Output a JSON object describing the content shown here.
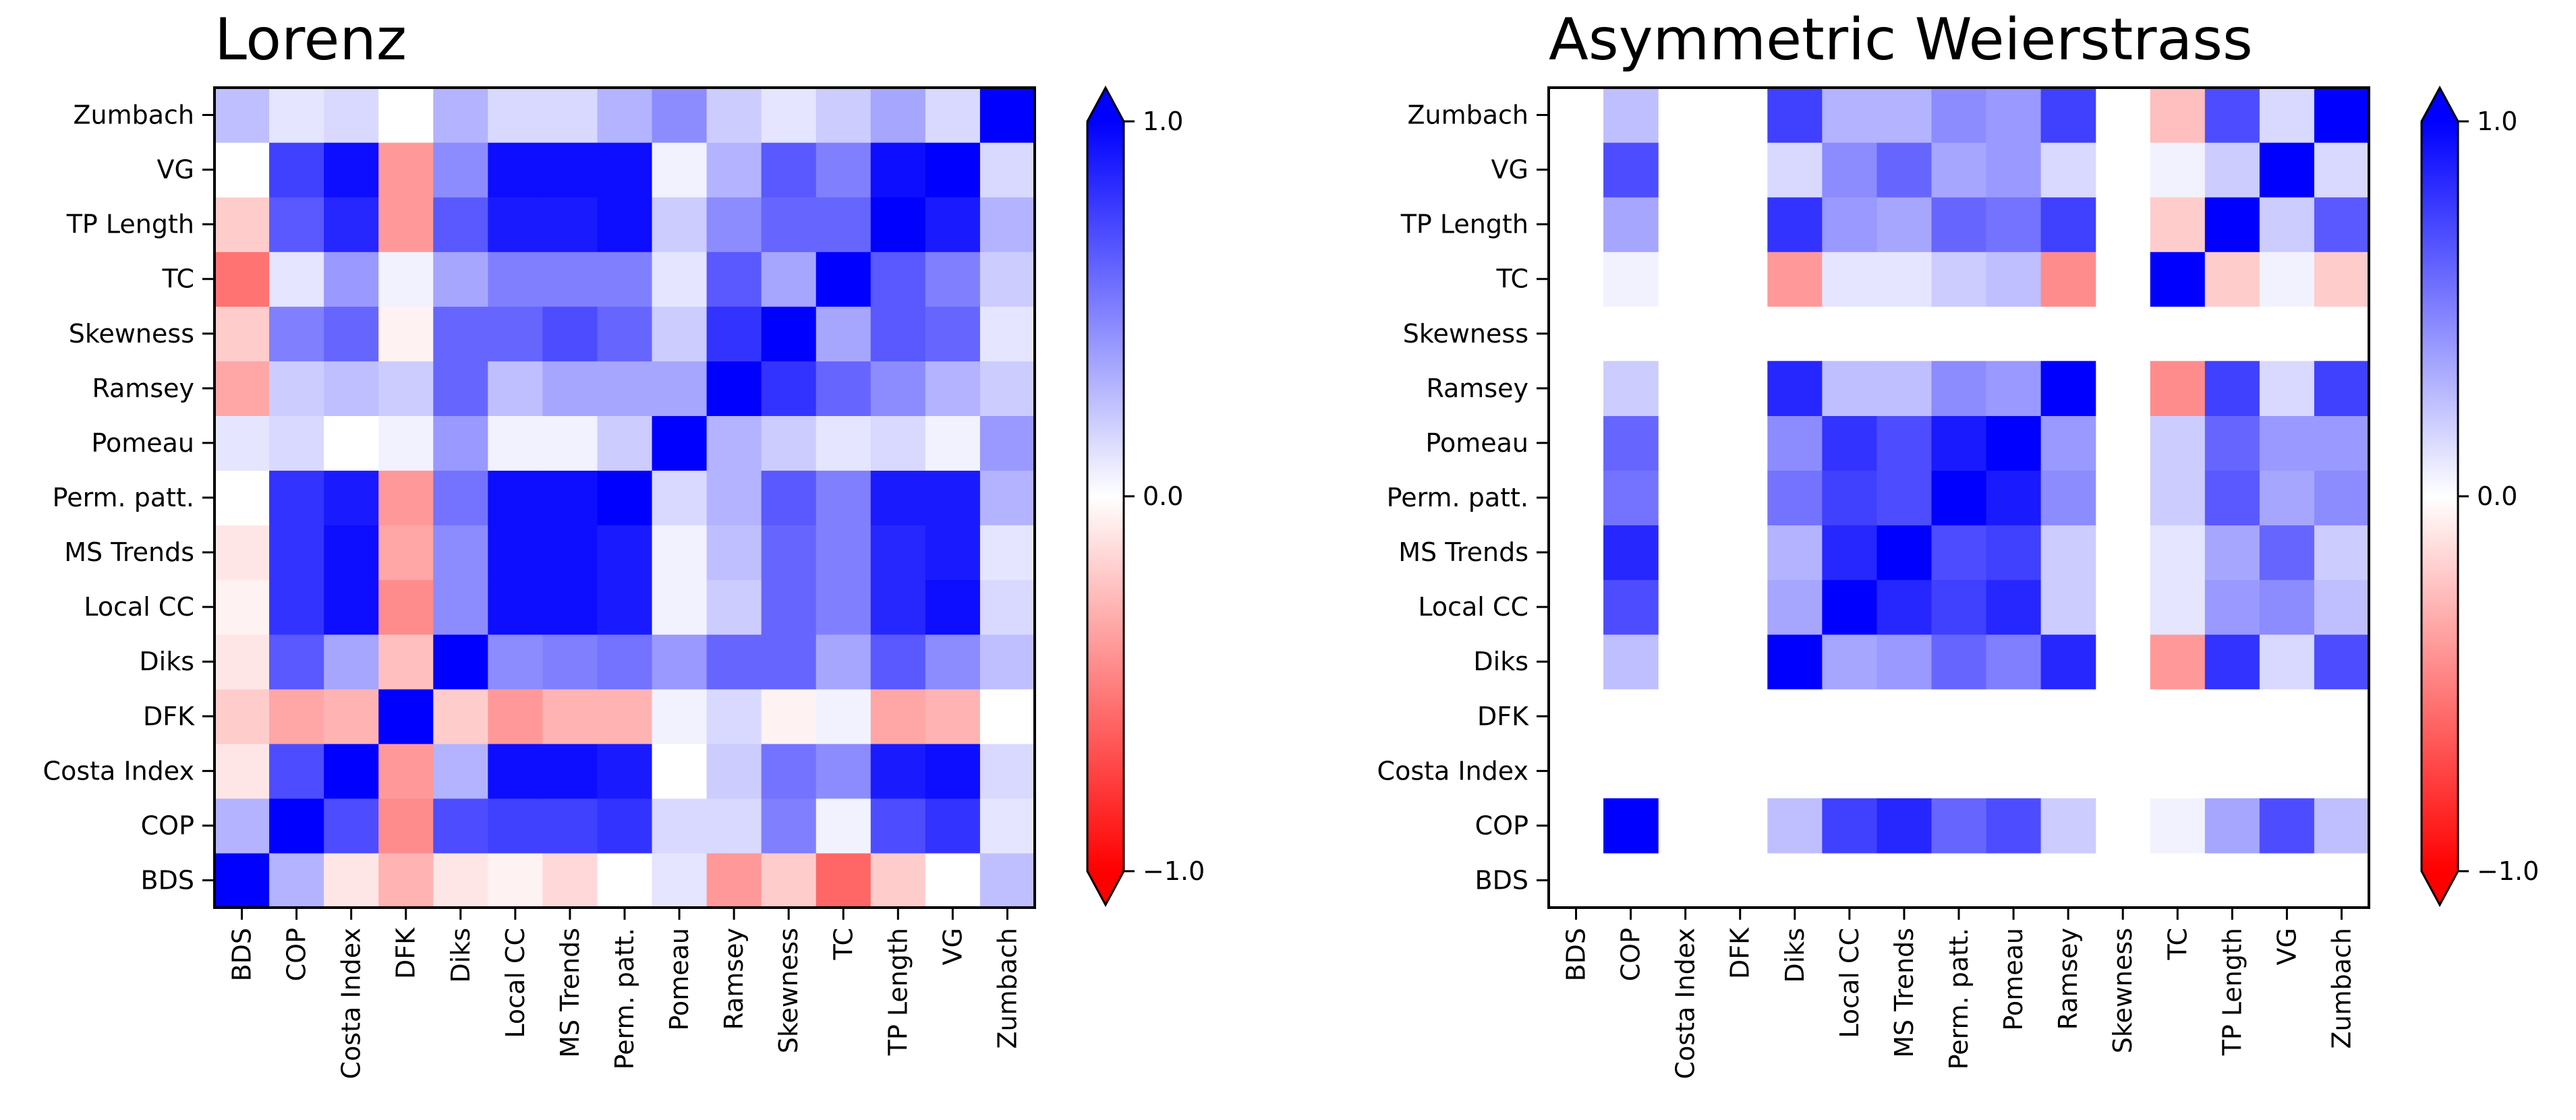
{
  "colorbar": {
    "ticks": [
      {
        "value": 1.0,
        "label": "1.0"
      },
      {
        "value": 0.0,
        "label": "0.0"
      },
      {
        "value": -1.0,
        "label": "−1.0"
      }
    ],
    "colormap": [
      "#ff0000",
      "#ffffff",
      "#0000ff"
    ]
  },
  "chart_data": [
    {
      "type": "heatmap",
      "title": "Lorenz",
      "vmin": -1,
      "vmax": 1,
      "x_categories": [
        "BDS",
        "COP",
        "Costa Index",
        "DFK",
        "Diks",
        "Local CC",
        "MS Trends",
        "Perm. patt.",
        "Pomeau",
        "Ramsey",
        "Skewness",
        "TC",
        "TP Length",
        "VG",
        "Zumbach"
      ],
      "y_categories": [
        "BDS",
        "COP",
        "Costa Index",
        "DFK",
        "Diks",
        "Local CC",
        "MS Trends",
        "Perm. patt.",
        "Pomeau",
        "Ramsey",
        "Skewness",
        "TC",
        "TP Length",
        "VG",
        "Zumbach"
      ],
      "values": [
        [
          1.0,
          0.3,
          -0.1,
          -0.3,
          -0.1,
          -0.05,
          -0.15,
          0.0,
          0.1,
          -0.4,
          -0.2,
          -0.6,
          -0.2,
          0.0,
          0.25
        ],
        [
          0.3,
          1.0,
          0.7,
          -0.45,
          0.7,
          0.75,
          0.75,
          0.8,
          0.15,
          0.15,
          0.5,
          0.05,
          0.7,
          0.8,
          0.1
        ],
        [
          -0.1,
          0.7,
          1.0,
          -0.4,
          0.3,
          0.95,
          0.95,
          0.9,
          0.0,
          0.2,
          0.55,
          0.45,
          0.9,
          0.95,
          0.15
        ],
        [
          -0.2,
          -0.35,
          -0.3,
          1.0,
          -0.2,
          -0.4,
          -0.3,
          -0.3,
          0.05,
          0.15,
          -0.05,
          0.05,
          -0.35,
          -0.3,
          0.0
        ],
        [
          -0.1,
          0.65,
          0.35,
          -0.25,
          1.0,
          0.45,
          0.5,
          0.55,
          0.4,
          0.6,
          0.6,
          0.35,
          0.65,
          0.45,
          0.25
        ],
        [
          -0.05,
          0.8,
          0.95,
          -0.45,
          0.45,
          0.95,
          0.95,
          0.9,
          0.05,
          0.2,
          0.6,
          0.5,
          0.85,
          0.95,
          0.15
        ],
        [
          -0.1,
          0.8,
          0.95,
          -0.35,
          0.45,
          0.95,
          0.95,
          0.9,
          0.05,
          0.25,
          0.6,
          0.5,
          0.85,
          0.9,
          0.1
        ],
        [
          0.0,
          0.8,
          0.9,
          -0.4,
          0.55,
          0.95,
          0.95,
          1.0,
          0.15,
          0.3,
          0.65,
          0.5,
          0.9,
          0.9,
          0.3
        ],
        [
          0.1,
          0.15,
          0.0,
          0.05,
          0.4,
          0.05,
          0.05,
          0.2,
          1.0,
          0.3,
          0.2,
          0.1,
          0.15,
          0.05,
          0.4
        ],
        [
          -0.35,
          0.2,
          0.25,
          0.2,
          0.6,
          0.25,
          0.35,
          0.35,
          0.35,
          1.0,
          0.8,
          0.6,
          0.45,
          0.3,
          0.2
        ],
        [
          -0.2,
          0.5,
          0.6,
          -0.05,
          0.6,
          0.6,
          0.7,
          0.6,
          0.2,
          0.8,
          1.0,
          0.35,
          0.65,
          0.6,
          0.1
        ],
        [
          -0.55,
          0.1,
          0.4,
          0.05,
          0.35,
          0.5,
          0.5,
          0.5,
          0.1,
          0.65,
          0.35,
          1.0,
          0.65,
          0.5,
          0.2
        ],
        [
          -0.2,
          0.65,
          0.85,
          -0.4,
          0.65,
          0.9,
          0.9,
          0.95,
          0.2,
          0.45,
          0.6,
          0.6,
          1.0,
          0.9,
          0.3
        ],
        [
          0.0,
          0.75,
          0.95,
          -0.4,
          0.45,
          0.95,
          0.95,
          0.95,
          0.05,
          0.3,
          0.65,
          0.5,
          0.95,
          1.0,
          0.15
        ],
        [
          0.25,
          0.1,
          0.15,
          0.0,
          0.3,
          0.15,
          0.15,
          0.3,
          0.45,
          0.2,
          0.1,
          0.2,
          0.35,
          0.15,
          1.0
        ]
      ]
    },
    {
      "type": "heatmap",
      "title": "Asymmetric Weierstrass",
      "vmin": -1,
      "vmax": 1,
      "x_categories": [
        "BDS",
        "COP",
        "Costa Index",
        "DFK",
        "Diks",
        "Local CC",
        "MS Trends",
        "Perm. patt.",
        "Pomeau",
        "Ramsey",
        "Skewness",
        "TC",
        "TP Length",
        "VG",
        "Zumbach"
      ],
      "y_categories": [
        "BDS",
        "COP",
        "Costa Index",
        "DFK",
        "Diks",
        "Local CC",
        "MS Trends",
        "Perm. patt.",
        "Pomeau",
        "Ramsey",
        "Skewness",
        "TC",
        "TP Length",
        "VG",
        "Zumbach"
      ],
      "values": [
        [
          null,
          null,
          null,
          null,
          null,
          null,
          null,
          null,
          null,
          null,
          null,
          null,
          null,
          null,
          null
        ],
        [
          null,
          1.0,
          null,
          null,
          0.25,
          0.75,
          0.85,
          0.6,
          0.7,
          0.2,
          null,
          0.05,
          0.35,
          0.7,
          0.25
        ],
        [
          null,
          null,
          null,
          null,
          null,
          null,
          null,
          null,
          null,
          null,
          null,
          null,
          null,
          null,
          null
        ],
        [
          null,
          null,
          null,
          null,
          null,
          null,
          null,
          null,
          null,
          null,
          null,
          null,
          null,
          null,
          null
        ],
        [
          null,
          0.25,
          null,
          null,
          1.0,
          0.35,
          0.4,
          0.6,
          0.5,
          0.85,
          null,
          -0.4,
          0.8,
          0.15,
          0.7
        ],
        [
          null,
          0.7,
          null,
          null,
          0.35,
          1.0,
          0.85,
          0.75,
          0.85,
          0.2,
          null,
          0.1,
          0.4,
          0.45,
          0.25
        ],
        [
          null,
          0.85,
          null,
          null,
          0.3,
          0.85,
          1.0,
          0.7,
          0.75,
          0.2,
          null,
          0.1,
          0.35,
          0.6,
          0.2
        ],
        [
          null,
          0.55,
          null,
          null,
          0.55,
          0.75,
          0.7,
          1.0,
          0.9,
          0.45,
          null,
          0.2,
          0.65,
          0.35,
          0.45
        ],
        [
          null,
          0.6,
          null,
          null,
          0.45,
          0.8,
          0.7,
          0.9,
          1.0,
          0.4,
          null,
          0.2,
          0.6,
          0.4,
          0.4
        ],
        [
          null,
          0.2,
          null,
          null,
          0.85,
          0.25,
          0.25,
          0.45,
          0.4,
          1.0,
          null,
          -0.45,
          0.75,
          0.15,
          0.75
        ],
        [
          null,
          null,
          null,
          null,
          null,
          null,
          null,
          null,
          null,
          null,
          null,
          null,
          null,
          null,
          null
        ],
        [
          null,
          0.05,
          null,
          null,
          -0.4,
          0.1,
          0.1,
          0.2,
          0.25,
          -0.45,
          null,
          1.0,
          -0.2,
          0.05,
          -0.2
        ],
        [
          null,
          0.35,
          null,
          null,
          0.8,
          0.4,
          0.35,
          0.6,
          0.55,
          0.75,
          null,
          -0.2,
          1.0,
          0.2,
          0.65
        ],
        [
          null,
          0.7,
          null,
          null,
          0.15,
          0.45,
          0.6,
          0.35,
          0.4,
          0.15,
          null,
          0.05,
          0.2,
          1.0,
          0.15
        ],
        [
          null,
          0.25,
          null,
          null,
          0.75,
          0.3,
          0.3,
          0.45,
          0.4,
          0.75,
          null,
          -0.25,
          0.7,
          0.15,
          1.0
        ]
      ]
    }
  ]
}
